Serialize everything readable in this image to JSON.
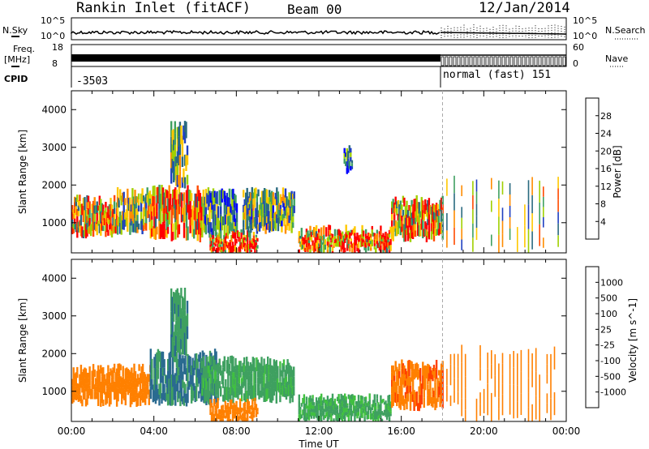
{
  "header": {
    "site": "Rankin Inlet (fitACF)",
    "beam": "Beam 00",
    "date": "12/Jan/2014"
  },
  "top_strips": {
    "nsky_label": "N.Sky",
    "nsky_ticks": [
      "10^5",
      "10^0"
    ],
    "nsearch_label": "N.Search",
    "nsearch_ticks": [
      "10^5",
      "10^0"
    ],
    "freq_label_1": "Freq.",
    "freq_label_2": "[MHz]",
    "freq_ticks": [
      "18",
      "8"
    ],
    "nave_label": "Nave",
    "nave_ticks": [
      "60",
      "0"
    ],
    "cpid_label": "CPID",
    "cpid_left": "-3503",
    "cpid_right": "normal (fast) 151"
  },
  "chart_data": [
    {
      "type": "heatmap",
      "title": "",
      "xlabel": "",
      "ylabel": "Slant Range [km]",
      "y_ticks": [
        "1000",
        "2000",
        "3000",
        "4000"
      ],
      "ylim": [
        200,
        4500
      ],
      "colorbar_label": "Power [dB]",
      "colorbar_ticks": [
        "28",
        "24",
        "20",
        "16",
        "12",
        "8",
        "4"
      ],
      "colorbar_colors": [
        "#ff0000",
        "#ff4a00",
        "#ff8c00",
        "#ffc800",
        "#a0d000",
        "#3fa060",
        "#2a6a80",
        "#2040c0",
        "#0000ff"
      ],
      "echo_regions": [
        {
          "t0": 0.0,
          "t1": 2.2,
          "r0": 700,
          "r1": 1600,
          "v": 20
        },
        {
          "t0": 2.2,
          "t1": 3.8,
          "r0": 800,
          "r1": 1800,
          "v": 14
        },
        {
          "t0": 3.8,
          "t1": 6.3,
          "r0": 600,
          "r1": 1900,
          "v": 22
        },
        {
          "t0": 4.8,
          "t1": 5.6,
          "r0": 2000,
          "r1": 3600,
          "v": 12
        },
        {
          "t0": 6.3,
          "t1": 8.0,
          "r0": 700,
          "r1": 1800,
          "v": 10
        },
        {
          "t0": 6.7,
          "t1": 9.0,
          "r0": 200,
          "r1": 700,
          "v": 26
        },
        {
          "t0": 8.3,
          "t1": 10.8,
          "r0": 800,
          "r1": 1800,
          "v": 12
        },
        {
          "t0": 11.0,
          "t1": 15.5,
          "r0": 250,
          "r1": 800,
          "v": 24
        },
        {
          "t0": 13.2,
          "t1": 13.6,
          "r0": 2400,
          "r1": 3000,
          "v": 8
        },
        {
          "t0": 15.5,
          "t1": 18.0,
          "r0": 600,
          "r1": 1600,
          "v": 22
        },
        {
          "t0": 18.0,
          "t1": 24.0,
          "r0": 300,
          "r1": 2100,
          "v": 16
        }
      ]
    },
    {
      "type": "heatmap",
      "title": "",
      "xlabel": "Time UT",
      "ylabel": "Slant Range [km]",
      "x_ticks": [
        "00:00",
        "04:00",
        "08:00",
        "12:00",
        "16:00",
        "20:00",
        "00:00"
      ],
      "y_ticks": [
        "1000",
        "2000",
        "3000",
        "4000"
      ],
      "ylim": [
        200,
        4500
      ],
      "colorbar_label": "Velocity [m s^-1]",
      "colorbar_ticks": [
        "1000",
        "500",
        "100",
        "25",
        "-25",
        "-100",
        "-500",
        "-1000"
      ],
      "colorbar_colors": [
        "#2a4ec0",
        "#2a6a90",
        "#3fa060",
        "#40c040",
        "#c0c0c0",
        "#ffc000",
        "#ff8000",
        "#ff4000",
        "#ff0000"
      ],
      "echo_regions": [
        {
          "t0": 0.0,
          "t1": 3.8,
          "r0": 700,
          "r1": 1600,
          "v": -300
        },
        {
          "t0": 3.8,
          "t1": 7.0,
          "r0": 700,
          "r1": 2000,
          "v": 600
        },
        {
          "t0": 4.8,
          "t1": 5.6,
          "r0": 2000,
          "r1": 3600,
          "v": 400
        },
        {
          "t0": 6.3,
          "t1": 10.8,
          "r0": 800,
          "r1": 1800,
          "v": 150
        },
        {
          "t0": 6.7,
          "t1": 9.0,
          "r0": 200,
          "r1": 700,
          "v": -200
        },
        {
          "t0": 11.0,
          "t1": 15.5,
          "r0": 250,
          "r1": 800,
          "v": 120
        },
        {
          "t0": 15.5,
          "t1": 18.0,
          "r0": 600,
          "r1": 1700,
          "v": -400
        },
        {
          "t0": 18.0,
          "t1": 24.0,
          "r0": 300,
          "r1": 2100,
          "v": -300
        }
      ]
    }
  ]
}
